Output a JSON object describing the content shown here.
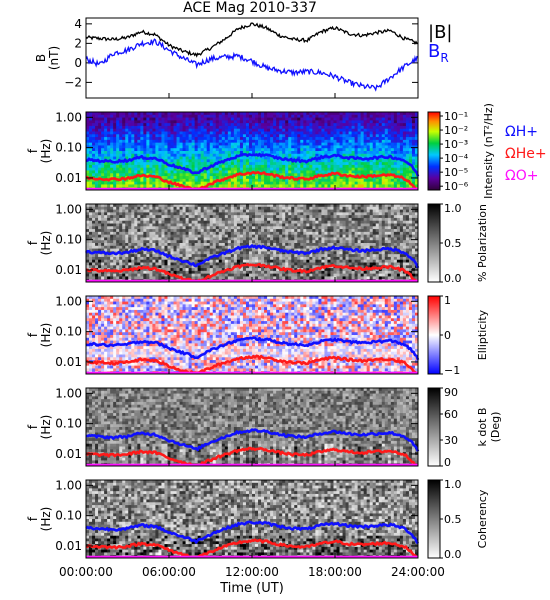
{
  "title": "ACE Mag 2010-337",
  "xaxis": {
    "label": "Time (UT)",
    "ticks": [
      "00:00:00",
      "06:00:00",
      "12:00:00",
      "18:00:00",
      "24:00:00"
    ],
    "hours": [
      0,
      6,
      12,
      18,
      24
    ]
  },
  "colors": {
    "black": "#000000",
    "blue": "#1010ff",
    "red": "#ff1a1a",
    "magenta": "#ff10ff"
  },
  "chart_data": [
    {
      "type": "line",
      "name": "field",
      "ylabel": [
        "B",
        "(nT)"
      ],
      "yticks": [
        "4",
        "2",
        "0",
        "−2"
      ],
      "ytick_values": [
        4,
        2,
        0,
        -2
      ],
      "ylim": [
        -3.6,
        4.6
      ],
      "legend": [
        {
          "text": "|B|",
          "color": "#000000"
        },
        {
          "text": "B",
          "sub": "R",
          "color": "#1010ff"
        }
      ],
      "x_hours": [
        0,
        1,
        2,
        3,
        4,
        5,
        6,
        7,
        8,
        9,
        10,
        11,
        12,
        13,
        14,
        15,
        16,
        17,
        18,
        19,
        20,
        21,
        22,
        23,
        24
      ],
      "series": [
        {
          "name": "|B|",
          "color": "#000000",
          "values": [
            2.6,
            2.5,
            2.4,
            2.6,
            3.2,
            2.9,
            1.8,
            1.2,
            0.8,
            1.5,
            2.4,
            3.5,
            4.0,
            3.6,
            2.8,
            2.4,
            2.3,
            3.2,
            3.6,
            3.0,
            2.8,
            3.1,
            3.3,
            2.5,
            2.0
          ]
        },
        {
          "name": "BR",
          "color": "#1010ff",
          "values": [
            0.4,
            -0.2,
            1.0,
            1.3,
            2.0,
            2.2,
            1.3,
            0.5,
            -0.2,
            0.4,
            0.6,
            0.7,
            0.2,
            -0.5,
            -0.8,
            -1.0,
            -0.9,
            -1.0,
            -1.4,
            -2.0,
            -2.4,
            -2.6,
            -1.5,
            -0.4,
            0.5
          ]
        }
      ]
    },
    {
      "type": "heatmap",
      "name": "intensity",
      "ylabel": [
        "f",
        "(Hz)"
      ],
      "yticks": [
        "1.00",
        "0.10",
        "0.01"
      ],
      "colorbar": {
        "label": "Intensity (nT²/Hz)",
        "scale": "log",
        "ticks": [
          "10⁻¹",
          "10⁻²",
          "10⁻³",
          "10⁻⁴",
          "10⁻⁵",
          "10⁻⁶"
        ]
      },
      "legend": [
        {
          "text": "ΩH+",
          "color": "#1010ff"
        },
        {
          "text": "ΩHe+",
          "color": "#ff1a1a"
        },
        {
          "text": "ΩO+",
          "color": "#ff10ff"
        }
      ]
    },
    {
      "type": "heatmap",
      "name": "polarization",
      "ylabel": [
        "f",
        "(Hz)"
      ],
      "yticks": [
        "1.00",
        "0.10",
        "0.01"
      ],
      "colorbar": {
        "label": "% Polarization",
        "ticks": [
          "1.0",
          "0.5",
          "0.0"
        ]
      }
    },
    {
      "type": "heatmap",
      "name": "ellipticity",
      "ylabel": [
        "f",
        "(Hz)"
      ],
      "yticks": [
        "1.00",
        "0.10",
        "0.01"
      ],
      "colorbar": {
        "label": "Ellipticity",
        "ticks": [
          "1",
          "0",
          "−1"
        ]
      }
    },
    {
      "type": "heatmap",
      "name": "k-dot-b",
      "ylabel": [
        "f",
        "(Hz)"
      ],
      "yticks": [
        "1.00",
        "0.10",
        "0.01"
      ],
      "colorbar": {
        "label": "k dot B",
        "label2": "(Deg)",
        "ticks": [
          "90",
          "60",
          "30",
          "0"
        ]
      }
    },
    {
      "type": "heatmap",
      "name": "coherency",
      "ylabel": [
        "f",
        "(Hz)"
      ],
      "yticks": [
        "1.00",
        "0.10",
        "0.01"
      ],
      "colorbar": {
        "label": "Coherency",
        "ticks": [
          "1.0",
          "0.5",
          "0.0"
        ]
      }
    }
  ],
  "gyrofrequency_hz": {
    "x_hours": [
      0,
      1,
      2,
      3,
      4,
      5,
      6,
      7,
      8,
      9,
      10,
      11,
      12,
      13,
      14,
      15,
      16,
      17,
      18,
      19,
      20,
      21,
      22,
      23,
      24
    ],
    "H+": [
      0.04,
      0.037,
      0.035,
      0.038,
      0.048,
      0.044,
      0.028,
      0.02,
      0.014,
      0.024,
      0.036,
      0.052,
      0.06,
      0.056,
      0.044,
      0.038,
      0.036,
      0.048,
      0.055,
      0.046,
      0.043,
      0.047,
      0.05,
      0.038,
      0.012
    ],
    "He+": [
      0.01,
      0.0095,
      0.009,
      0.0098,
      0.012,
      0.011,
      0.0072,
      0.0052,
      0.004,
      0.0063,
      0.0093,
      0.013,
      0.015,
      0.014,
      0.011,
      0.0096,
      0.0092,
      0.012,
      0.014,
      0.0117,
      0.011,
      0.012,
      0.0125,
      0.0096,
      0.003
    ],
    "O+": [
      0.0026,
      0.0024,
      0.0023,
      0.0025,
      0.003,
      0.0028,
      0.0018,
      0.0013,
      0.001,
      0.0016,
      0.0023,
      0.0033,
      0.0038,
      0.0035,
      0.0028,
      0.0024,
      0.0023,
      0.003,
      0.0035,
      0.0029,
      0.0027,
      0.003,
      0.0031,
      0.0024,
      0.0008
    ]
  }
}
